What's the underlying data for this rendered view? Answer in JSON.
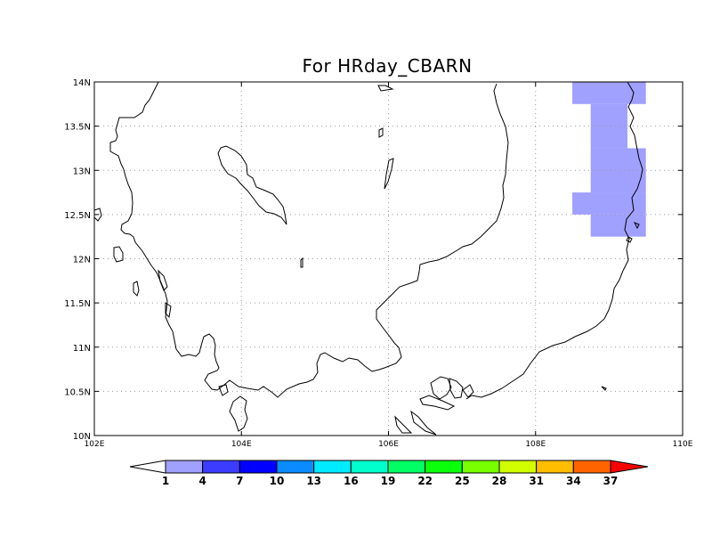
{
  "map": {
    "title": "For HRday_CBARN",
    "lon_range": [
      102,
      110
    ],
    "lat_range": [
      10,
      14
    ],
    "lon_ticks": [
      {
        "value": 102,
        "label": "102E"
      },
      {
        "value": 104,
        "label": "104E"
      },
      {
        "value": 106,
        "label": "106E"
      },
      {
        "value": 108,
        "label": "108E"
      },
      {
        "value": 110,
        "label": "110E"
      }
    ],
    "lat_ticks": [
      {
        "value": 10,
        "label": "10N"
      },
      {
        "value": 10.5,
        "label": "10.5N"
      },
      {
        "value": 11,
        "label": "11N"
      },
      {
        "value": 11.5,
        "label": "11.5N"
      },
      {
        "value": 12,
        "label": "12N"
      },
      {
        "value": 12.5,
        "label": "12.5N"
      },
      {
        "value": 13,
        "label": "13N"
      },
      {
        "value": 13.5,
        "label": "13.5N"
      },
      {
        "value": 14,
        "label": "14N"
      }
    ],
    "grid": true,
    "shaded_value_range": [
      1,
      4
    ],
    "shaded_color": "#a0a0ff",
    "shaded_cells": [
      {
        "lon": [
          108.5,
          109.5
        ],
        "lat": [
          13.75,
          14.0
        ]
      },
      {
        "lon": [
          108.75,
          109.25
        ],
        "lat": [
          13.25,
          13.75
        ]
      },
      {
        "lon": [
          108.75,
          109.5
        ],
        "lat": [
          12.75,
          13.25
        ]
      },
      {
        "lon": [
          108.5,
          109.5
        ],
        "lat": [
          12.5,
          12.75
        ]
      },
      {
        "lon": [
          108.75,
          109.5
        ],
        "lat": [
          12.25,
          12.5
        ]
      }
    ]
  },
  "colorbar": {
    "labels": [
      "1",
      "4",
      "7",
      "10",
      "13",
      "16",
      "19",
      "22",
      "25",
      "28",
      "31",
      "34",
      "37"
    ],
    "under_color": "#ffffff",
    "over_color": "#ff0000",
    "colors": [
      "#a0a0ff",
      "#3c3cff",
      "#0000ff",
      "#0a8cff",
      "#00ebff",
      "#00ffcd",
      "#00ff64",
      "#0aff0a",
      "#78ff00",
      "#d2ff00",
      "#ffbe00",
      "#ff6400"
    ]
  }
}
